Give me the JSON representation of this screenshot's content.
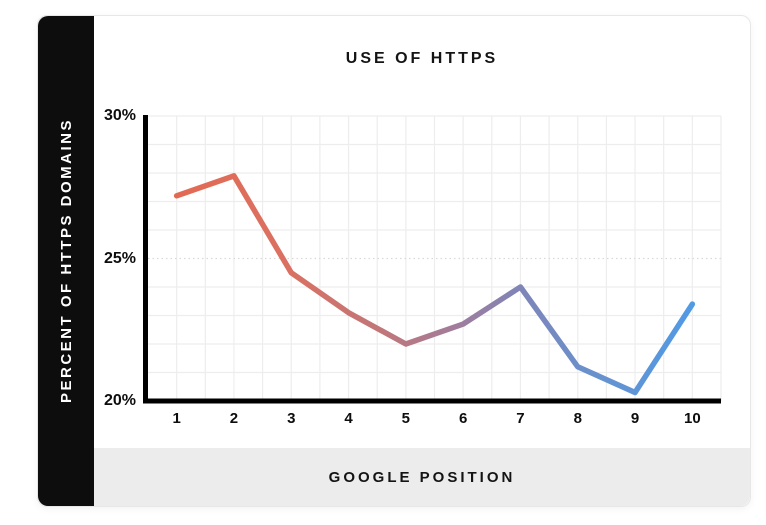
{
  "header": {
    "title": "USE OF HTTPS"
  },
  "sidebar": {
    "label": "PERCENT OF HTTPS DOMAINS",
    "bg": "#0d0d0d",
    "text_color": "#ffffff"
  },
  "footer": {
    "label": "GOOGLE POSITION",
    "bg": "#ececec"
  },
  "chart_data": {
    "type": "line",
    "title": "USE OF HTTPS",
    "xlabel": "GOOGLE POSITION",
    "ylabel": "PERCENT OF HTTPS DOMAINS",
    "categories": [
      "1",
      "2",
      "3",
      "4",
      "5",
      "6",
      "7",
      "8",
      "9",
      "10"
    ],
    "values": [
      27.2,
      27.9,
      24.5,
      23.1,
      22.0,
      22.7,
      24.0,
      21.2,
      20.3,
      23.4
    ],
    "ylim": [
      20,
      30
    ],
    "yticks": [
      {
        "value": 30,
        "label": "30%"
      },
      {
        "value": 25,
        "label": "25%"
      },
      {
        "value": 20,
        "label": "20%"
      }
    ],
    "grid": {
      "on": true,
      "h_step_percent": 1,
      "v_lines_per_category": 2,
      "color": "#ededed",
      "dotted_color": "#d9d9d9",
      "dotted_at_values": [
        25
      ]
    },
    "axis_color": "#000000",
    "legend_position": "none",
    "line": {
      "width": 5.5,
      "cap": "round",
      "gradient": [
        {
          "offset": 0.0,
          "color": "#e26a53"
        },
        {
          "offset": 0.2,
          "color": "#dc7061"
        },
        {
          "offset": 0.4,
          "color": "#c17679"
        },
        {
          "offset": 0.55,
          "color": "#9f7d9e"
        },
        {
          "offset": 0.67,
          "color": "#7e85b8"
        },
        {
          "offset": 0.8,
          "color": "#6991cd"
        },
        {
          "offset": 1.0,
          "color": "#519ae4"
        }
      ]
    }
  }
}
